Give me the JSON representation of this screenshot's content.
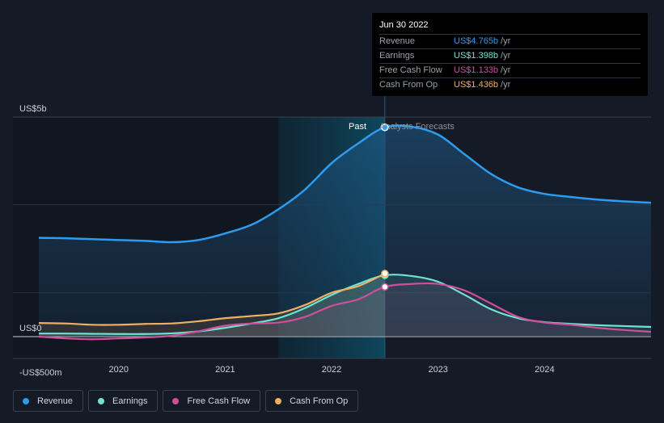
{
  "tooltip": {
    "date": "Jun 30 2022",
    "rows": [
      {
        "label": "Revenue",
        "value": "US$4.765b",
        "unit": "/yr",
        "color": "#2d9cf0"
      },
      {
        "label": "Earnings",
        "value": "US$1.398b",
        "unit": "/yr",
        "color": "#6fe3d2"
      },
      {
        "label": "Free Cash Flow",
        "value": "US$1.133b",
        "unit": "/yr",
        "color": "#cf4f9c"
      },
      {
        "label": "Cash From Op",
        "value": "US$1.436b",
        "unit": "/yr",
        "color": "#f0b061"
      }
    ]
  },
  "past_label": "Past",
  "forecast_label": "Analysts Forecasts",
  "legend": [
    {
      "label": "Revenue",
      "color": "#2d9cf0"
    },
    {
      "label": "Earnings",
      "color": "#6fe3d2"
    },
    {
      "label": "Free Cash Flow",
      "color": "#cf4f9c"
    },
    {
      "label": "Cash From Op",
      "color": "#f0b061"
    }
  ],
  "chart_data": {
    "type": "line",
    "y_tick_labels": [
      "US$5b",
      "US$0",
      "-US$500m"
    ],
    "y_ticks": [
      5000,
      0,
      -500
    ],
    "ylim": [
      -500,
      5000
    ],
    "xlim": [
      2019.25,
      2025.0
    ],
    "x_ticks": [
      2020,
      2021,
      2022,
      2023,
      2024
    ],
    "x_tick_labels": [
      "2020",
      "2021",
      "2022",
      "2023",
      "2024"
    ],
    "divider_x": 2022.5,
    "highlight_range": [
      2021.5,
      2022.5
    ],
    "grid": true,
    "legend_position": "bottom-left",
    "series": [
      {
        "name": "Revenue",
        "color": "#2d9cf0",
        "points": [
          [
            2019.25,
            2250
          ],
          [
            2019.5,
            2240
          ],
          [
            2019.75,
            2220
          ],
          [
            2020.0,
            2200
          ],
          [
            2020.25,
            2180
          ],
          [
            2020.5,
            2150
          ],
          [
            2020.75,
            2200
          ],
          [
            2021.0,
            2350
          ],
          [
            2021.25,
            2550
          ],
          [
            2021.5,
            2900
          ],
          [
            2021.75,
            3350
          ],
          [
            2022.0,
            3950
          ],
          [
            2022.25,
            4400
          ],
          [
            2022.5,
            4765
          ],
          [
            2022.75,
            4780
          ],
          [
            2023.0,
            4600
          ],
          [
            2023.25,
            4150
          ],
          [
            2023.5,
            3700
          ],
          [
            2023.75,
            3400
          ],
          [
            2024.0,
            3250
          ],
          [
            2024.25,
            3180
          ],
          [
            2024.5,
            3120
          ],
          [
            2024.75,
            3080
          ],
          [
            2025.0,
            3050
          ]
        ]
      },
      {
        "name": "Earnings",
        "color": "#6fe3d2",
        "points": [
          [
            2019.25,
            70
          ],
          [
            2019.5,
            70
          ],
          [
            2019.75,
            65
          ],
          [
            2020.0,
            60
          ],
          [
            2020.25,
            60
          ],
          [
            2020.5,
            75
          ],
          [
            2020.75,
            120
          ],
          [
            2021.0,
            200
          ],
          [
            2021.25,
            300
          ],
          [
            2021.5,
            420
          ],
          [
            2021.75,
            650
          ],
          [
            2022.0,
            950
          ],
          [
            2022.25,
            1200
          ],
          [
            2022.5,
            1398
          ],
          [
            2022.75,
            1380
          ],
          [
            2023.0,
            1250
          ],
          [
            2023.25,
            950
          ],
          [
            2023.5,
            620
          ],
          [
            2023.75,
            420
          ],
          [
            2024.0,
            330
          ],
          [
            2024.25,
            290
          ],
          [
            2024.5,
            260
          ],
          [
            2024.75,
            240
          ],
          [
            2025.0,
            220
          ]
        ]
      },
      {
        "name": "Free Cash Flow",
        "color": "#cf4f9c",
        "points": [
          [
            2019.25,
            0
          ],
          [
            2019.5,
            -40
          ],
          [
            2019.75,
            -60
          ],
          [
            2020.0,
            -40
          ],
          [
            2020.25,
            -20
          ],
          [
            2020.5,
            20
          ],
          [
            2020.75,
            120
          ],
          [
            2021.0,
            250
          ],
          [
            2021.25,
            300
          ],
          [
            2021.5,
            320
          ],
          [
            2021.75,
            450
          ],
          [
            2022.0,
            700
          ],
          [
            2022.25,
            850
          ],
          [
            2022.5,
            1133
          ],
          [
            2022.75,
            1200
          ],
          [
            2023.0,
            1200
          ],
          [
            2023.25,
            1050
          ],
          [
            2023.5,
            750
          ],
          [
            2023.75,
            450
          ],
          [
            2024.0,
            320
          ],
          [
            2024.25,
            270
          ],
          [
            2024.5,
            200
          ],
          [
            2024.75,
            150
          ],
          [
            2025.0,
            110
          ]
        ]
      },
      {
        "name": "Cash From Op",
        "color": "#f0b061",
        "points": [
          [
            2019.25,
            310
          ],
          [
            2019.5,
            300
          ],
          [
            2019.75,
            270
          ],
          [
            2020.0,
            270
          ],
          [
            2020.25,
            290
          ],
          [
            2020.5,
            300
          ],
          [
            2020.75,
            350
          ],
          [
            2021.0,
            420
          ],
          [
            2021.25,
            470
          ],
          [
            2021.5,
            530
          ],
          [
            2021.75,
            720
          ],
          [
            2022.0,
            1000
          ],
          [
            2022.25,
            1150
          ],
          [
            2022.5,
            1436
          ]
        ]
      }
    ]
  }
}
